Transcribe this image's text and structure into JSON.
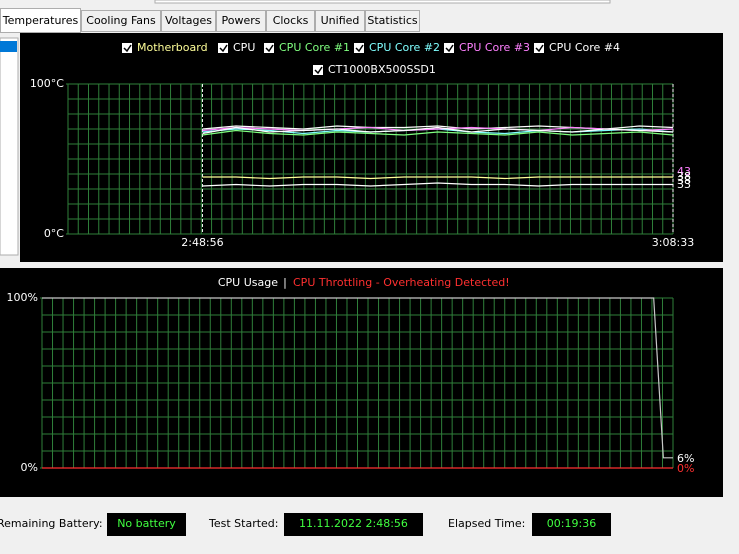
{
  "tabs": [
    "Temperatures",
    "Cooling Fans",
    "Voltages",
    "Powers",
    "Clocks",
    "Unified",
    "Statistics"
  ],
  "temp_chart": {
    "type": "line",
    "series": [
      {
        "name": "Motherboard",
        "color": "#ffff99",
        "values": [
          38,
          38,
          37,
          38,
          38,
          37,
          38,
          38,
          38,
          37,
          38,
          38,
          38,
          38,
          38
        ]
      },
      {
        "name": "CPU",
        "color": "#ffffff",
        "values": [
          70,
          72,
          71,
          70,
          72,
          71,
          71,
          72,
          70,
          71,
          72,
          71,
          70,
          72,
          71
        ]
      },
      {
        "name": "CPU Core #1",
        "color": "#80ff80",
        "values": [
          66,
          69,
          67,
          66,
          68,
          67,
          66,
          68,
          67,
          66,
          68,
          66,
          67,
          68,
          66
        ]
      },
      {
        "name": "CPU Core #2",
        "color": "#80ffff",
        "values": [
          68,
          70,
          69,
          67,
          69,
          68,
          69,
          70,
          68,
          67,
          69,
          68,
          69,
          70,
          68
        ]
      },
      {
        "name": "CPU Core #3",
        "color": "#ff80ff",
        "values": [
          69,
          71,
          70,
          69,
          70,
          71,
          69,
          70,
          71,
          70,
          69,
          71,
          70,
          69,
          70
        ]
      },
      {
        "name": "CPU Core #4",
        "color": "#ffffff",
        "values": [
          67,
          71,
          68,
          69,
          70,
          68,
          69,
          71,
          68,
          70,
          69,
          68,
          70,
          69,
          68
        ]
      },
      {
        "name": "CT1000BX500SSD1",
        "color": "#ffffff",
        "values": [
          32,
          33,
          32,
          33,
          33,
          32,
          33,
          34,
          33,
          33,
          32,
          33,
          33,
          33,
          33
        ]
      }
    ],
    "x": [
      0,
      1.4,
      2.8,
      4.2,
      5.6,
      7,
      8.4,
      9.8,
      11.2,
      12.6,
      14,
      15.4,
      16.8,
      18.2,
      19.6
    ],
    "xlim": [
      -5.6,
      19.6
    ],
    "xticks": [
      {
        "value": 0,
        "label": "2:48:56"
      },
      {
        "value": 19.6,
        "label": "3:08:33"
      }
    ],
    "ylim": [
      0,
      100
    ],
    "yticks": [
      {
        "value": 0,
        "label": "0°C"
      },
      {
        "value": 100,
        "label": "100°C"
      }
    ],
    "grid": true,
    "end_labels": [
      43,
      38,
      38,
      33
    ]
  },
  "usage_chart": {
    "type": "line",
    "title": "CPU Usage",
    "separator": "|",
    "warning": "CPU Throttling - Overheating Detected!",
    "series": [
      {
        "name": "CPU Usage",
        "color": "#c8c8c8",
        "values": [
          100,
          100,
          6,
          6
        ]
      },
      {
        "name": "CPU Throttling",
        "color": "#ff3030",
        "values": [
          0,
          0,
          0,
          0
        ]
      }
    ],
    "x": [
      0,
      19.0,
      19.3,
      19.6
    ],
    "xlim": [
      0,
      19.6
    ],
    "ylim": [
      0,
      100
    ],
    "yticks": [
      {
        "value": 0,
        "label": "0%"
      },
      {
        "value": 100,
        "label": "100%"
      }
    ],
    "grid": true,
    "end_labels": [
      "6%",
      "0%"
    ]
  },
  "status": {
    "battery_label": "Remaining Battery:",
    "battery_value": "No battery",
    "started_label": "Test Started:",
    "started_value": "11.11.2022 2:48:56",
    "elapsed_label": "Elapsed Time:",
    "elapsed_value": "00:19:36"
  }
}
